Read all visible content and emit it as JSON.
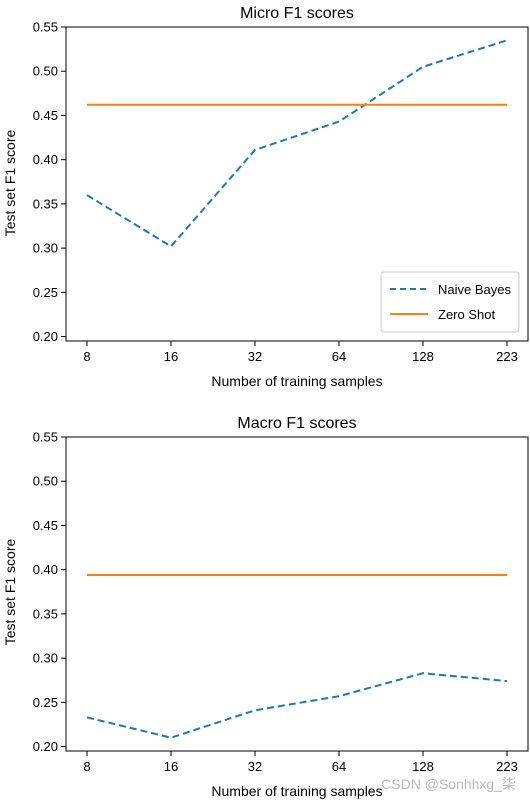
{
  "chart_data": [
    {
      "type": "line",
      "title": "Micro F1 scores",
      "xlabel": "Number of training samples",
      "ylabel": "Test set F1 score",
      "categories": [
        "8",
        "16",
        "32",
        "64",
        "128",
        "223"
      ],
      "ylim": [
        0.195,
        0.55
      ],
      "yticks": [
        "0.20",
        "0.25",
        "0.30",
        "0.35",
        "0.40",
        "0.45",
        "0.50",
        "0.55"
      ],
      "legend": "bottom-right",
      "grid": false,
      "series": [
        {
          "name": "Naive Bayes",
          "style": "dashed",
          "color": "#1f77b4",
          "values": [
            0.36,
            0.302,
            0.411,
            0.443,
            0.505,
            0.535
          ]
        },
        {
          "name": "Zero Shot",
          "style": "solid",
          "color": "#ff7f0e",
          "values": [
            0.462,
            0.462,
            0.462,
            0.462,
            0.462,
            0.462
          ]
        }
      ]
    },
    {
      "type": "line",
      "title": "Macro F1 scores",
      "xlabel": "Number of training samples",
      "ylabel": "Test set F1 score",
      "categories": [
        "8",
        "16",
        "32",
        "64",
        "128",
        "223"
      ],
      "ylim": [
        0.195,
        0.55
      ],
      "yticks": [
        "0.20",
        "0.25",
        "0.30",
        "0.35",
        "0.40",
        "0.45",
        "0.50",
        "0.55"
      ],
      "grid": false,
      "series": [
        {
          "name": "",
          "style": "dashed",
          "color": "#1f77b4",
          "values": [
            0.233,
            0.21,
            0.241,
            0.257,
            0.283,
            0.274
          ]
        },
        {
          "name": "",
          "style": "solid",
          "color": "#ff7f0e",
          "values": [
            0.394,
            0.394,
            0.394,
            0.394,
            0.394,
            0.394
          ]
        }
      ]
    }
  ],
  "watermark": "CSDN @Sonhhxg_柒"
}
